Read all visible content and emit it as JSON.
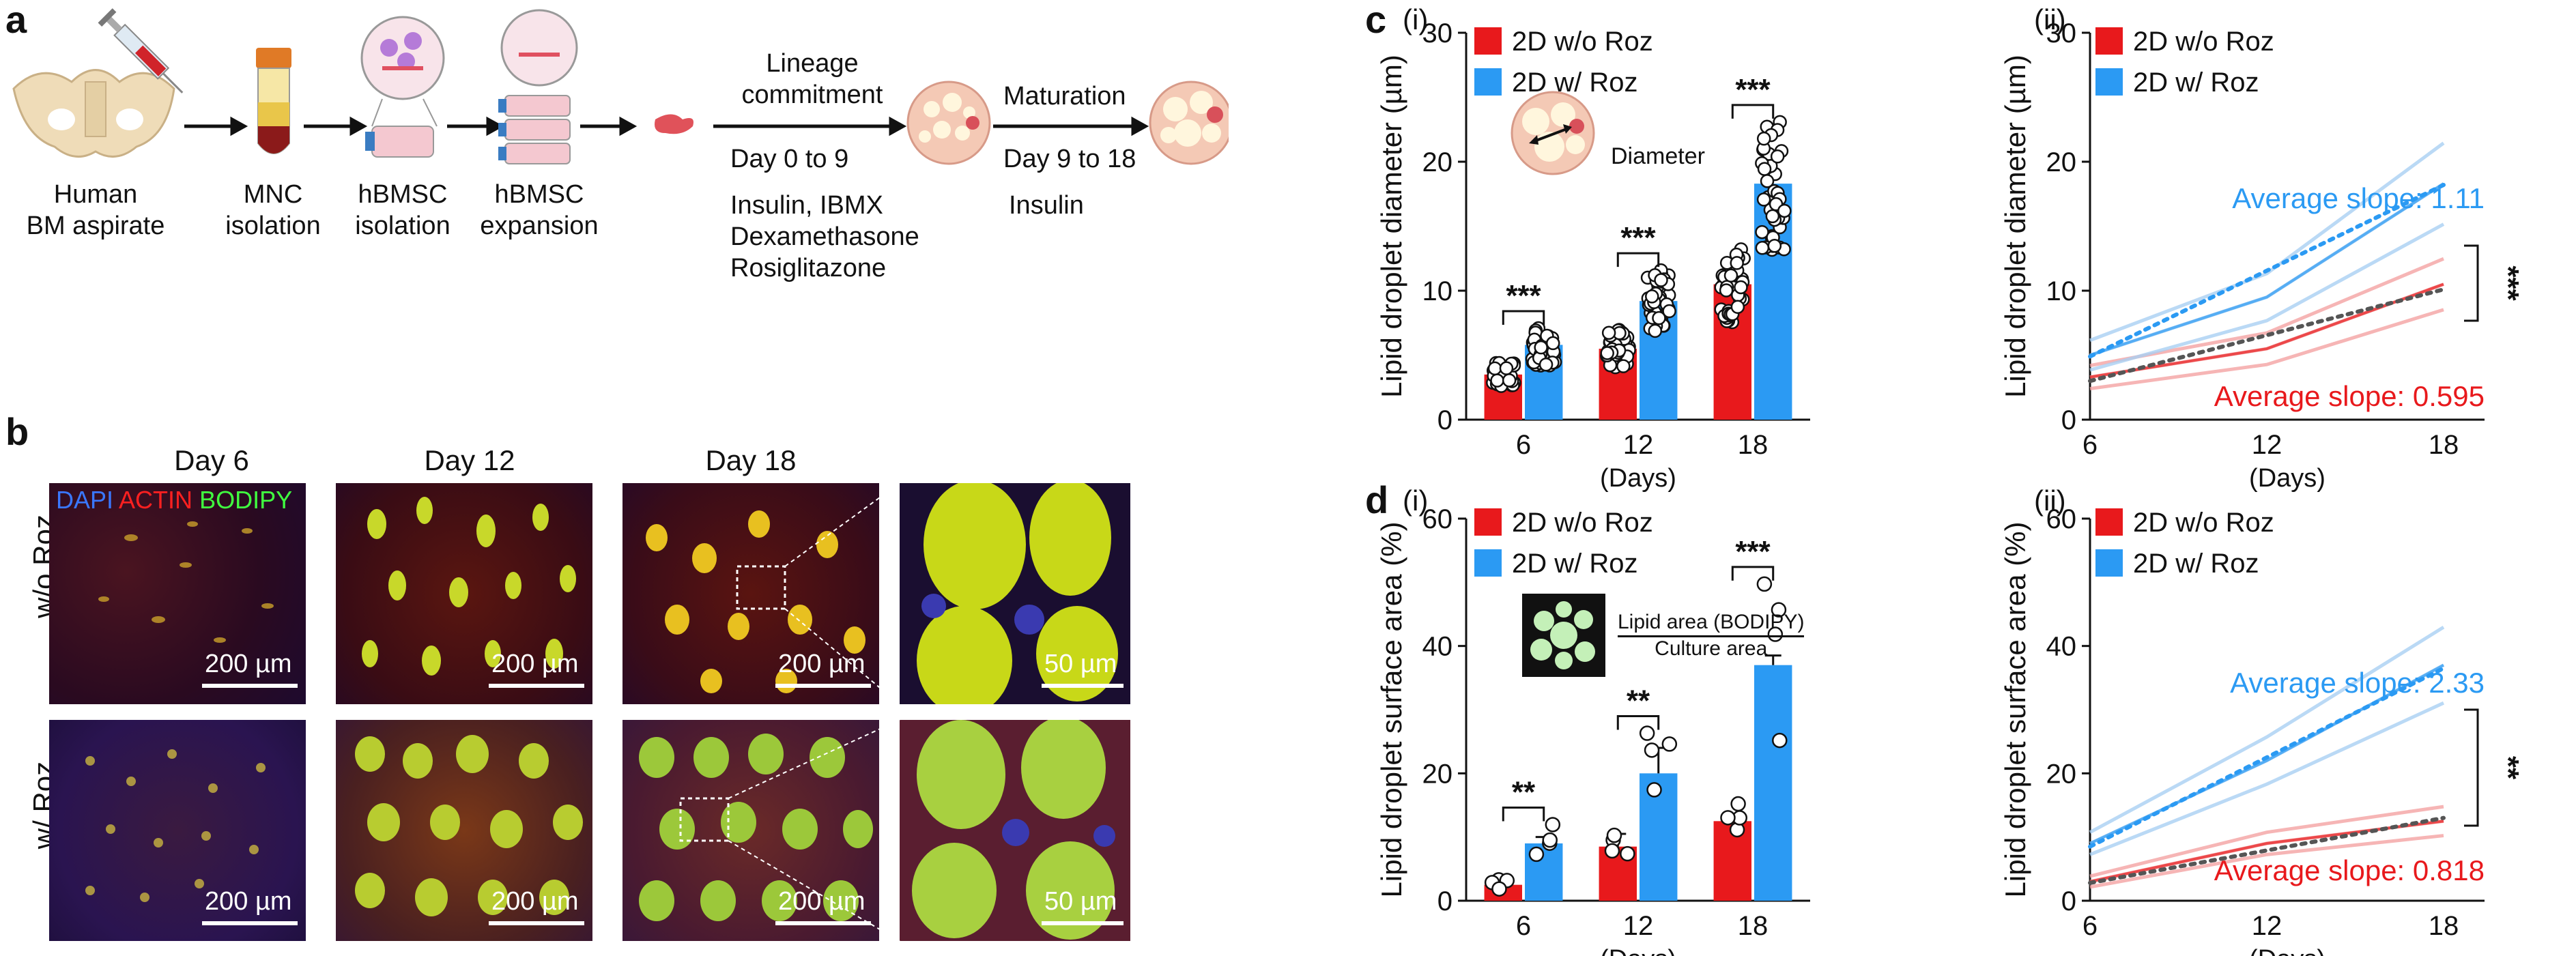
{
  "panel_a": {
    "label": "a",
    "steps": [
      {
        "line1": "Human",
        "line2": "BM aspirate"
      },
      {
        "line1": "MNC",
        "line2": "isolation"
      },
      {
        "line1": "hBMSC",
        "line2": "isolation"
      },
      {
        "line1": "hBMSC",
        "line2": "expansion"
      }
    ],
    "stage1": {
      "above": "Lineage",
      "above2": "commitment",
      "days": "Day 0 to 9",
      "reagents": [
        "Insulin, IBMX",
        "Dexamethasone",
        "Rosiglitazone"
      ]
    },
    "stage2": {
      "above": "Maturation",
      "days": "Day 9 to 18",
      "reagents": [
        "Insulin"
      ]
    }
  },
  "panel_b": {
    "label": "b",
    "columns": [
      "Day 6",
      "Day 12",
      "Day 18"
    ],
    "rows": [
      "w/o Roz",
      "w/ Roz"
    ],
    "stain_labels": {
      "dapi": "DAPI",
      "actin": "ACTIN",
      "bodipy": "BODIPY"
    },
    "scale_main": "200 µm",
    "scale_zoom": "50 µm"
  },
  "panel_c": {
    "label": "c",
    "sub_i": "(i)",
    "sub_ii": "(ii)",
    "inset_label": "Diameter"
  },
  "panel_d": {
    "label": "d",
    "sub_i": "(i)",
    "sub_ii": "(ii)",
    "inset_num": "Lipid area (BODIPY)",
    "inset_den": "Culture area"
  },
  "colors": {
    "red": "#e8191c",
    "blue": "#2b9af3",
    "red_light": "#f4a3a3",
    "blue_light": "#a9cff3"
  },
  "chart_data": [
    {
      "id": "c_i",
      "type": "bar",
      "ylabel": "Lipid droplet diameter (µm)",
      "xlabel": "(Days)",
      "categories": [
        "6",
        "12",
        "18"
      ],
      "ylim": [
        0,
        30
      ],
      "yticks": [
        0,
        10,
        20,
        30
      ],
      "series": [
        {
          "name": "2D w/o Roz",
          "values": [
            3.5,
            5.5,
            10.5
          ]
        },
        {
          "name": "2D w/ Roz",
          "values": [
            5.8,
            9.2,
            18.3
          ]
        }
      ],
      "significance": [
        "***",
        "***",
        "***"
      ]
    },
    {
      "id": "c_ii",
      "type": "line",
      "ylabel": "Lipid droplet diameter (µm)",
      "xlabel": "(Days)",
      "x": [
        6,
        12,
        18
      ],
      "xticks": [
        "6",
        "12",
        "18"
      ],
      "ylim": [
        0,
        30
      ],
      "yticks": [
        0,
        10,
        20,
        30
      ],
      "series": [
        {
          "name": "2D w/o Roz",
          "values": [
            3.3,
            5.5,
            10.5
          ]
        },
        {
          "name": "2D w/ Roz",
          "values": [
            5.0,
            9.5,
            18.3
          ]
        }
      ],
      "trend": [
        {
          "name": "2D w/o Roz",
          "x": [
            6,
            18
          ],
          "y": [
            3.0,
            10.1
          ]
        },
        {
          "name": "2D w/ Roz",
          "x": [
            6,
            18
          ],
          "y": [
            4.9,
            18.2
          ]
        }
      ],
      "annotations": [
        "Average slope: 1.11",
        "Average slope: 0.595"
      ],
      "significance": "***"
    },
    {
      "id": "d_i",
      "type": "bar",
      "ylabel": "Lipid droplet surface area (%)",
      "xlabel": "(Days)",
      "categories": [
        "6",
        "12",
        "18"
      ],
      "ylim": [
        0,
        60
      ],
      "yticks": [
        0,
        20,
        40,
        60
      ],
      "series": [
        {
          "name": "2D w/o Roz",
          "values": [
            2.5,
            8.5,
            12.5
          ]
        },
        {
          "name": "2D w/ Roz",
          "values": [
            9.0,
            20.0,
            37.0
          ]
        }
      ],
      "errors": [
        [
          0.5,
          2.0,
          0.5
        ],
        [
          1.0,
          4.0,
          1.5
        ]
      ],
      "significance": [
        "**",
        "**",
        "***"
      ]
    },
    {
      "id": "d_ii",
      "type": "line",
      "ylabel": "Lipid droplet surface area (%)",
      "xlabel": "(Days)",
      "x": [
        6,
        12,
        18
      ],
      "xticks": [
        "6",
        "12",
        "18"
      ],
      "ylim": [
        0,
        60
      ],
      "yticks": [
        0,
        20,
        40,
        60
      ],
      "series": [
        {
          "name": "2D w/o Roz",
          "values": [
            3.0,
            9.0,
            12.5
          ]
        },
        {
          "name": "2D w/ Roz",
          "values": [
            9.0,
            22.0,
            37.0
          ]
        }
      ],
      "trend": [
        {
          "name": "2D w/o Roz",
          "x": [
            6,
            18
          ],
          "y": [
            2.8,
            13.0
          ]
        },
        {
          "name": "2D w/ Roz",
          "x": [
            6,
            18
          ],
          "y": [
            8.5,
            36.5
          ]
        }
      ],
      "annotations": [
        "Average slope: 2.33",
        "Average slope: 0.818"
      ],
      "significance": "**"
    }
  ]
}
